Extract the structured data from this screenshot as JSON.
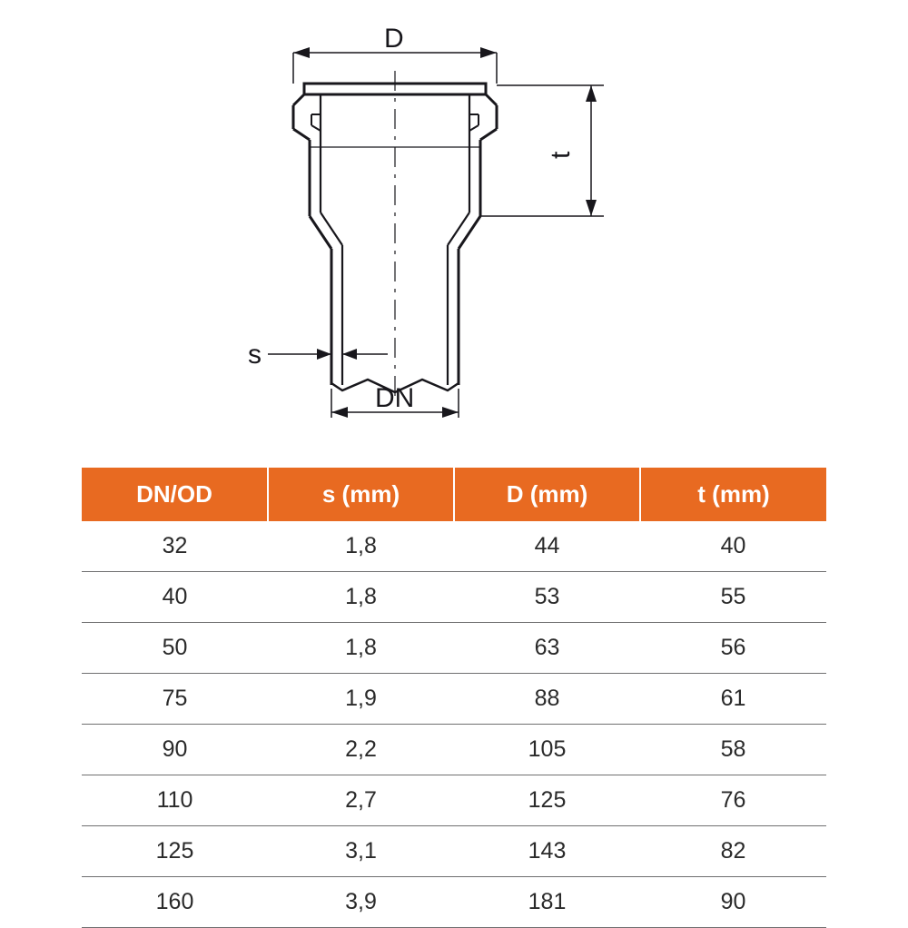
{
  "diagram": {
    "labels": {
      "d": "D",
      "t": "t",
      "s": "s",
      "dn": "DN"
    },
    "stroke_color": "#18171c",
    "stroke_width_main": 3,
    "stroke_width_dim": 1.5,
    "centerline_dash": "18 7 4 7"
  },
  "table": {
    "header_bg": "#e86a21",
    "header_fg": "#ffffff",
    "row_border_color": "#6f6f70",
    "header_fontsize": 26,
    "cell_fontsize": 25,
    "columns": [
      "DN/OD",
      "s (mm)",
      "D (mm)",
      "t (mm)"
    ],
    "rows": [
      [
        "32",
        "1,8",
        "44",
        "40"
      ],
      [
        "40",
        "1,8",
        "53",
        "55"
      ],
      [
        "50",
        "1,8",
        "63",
        "56"
      ],
      [
        "75",
        "1,9",
        "88",
        "61"
      ],
      [
        "90",
        "2,2",
        "105",
        "58"
      ],
      [
        "110",
        "2,7",
        "125",
        "76"
      ],
      [
        "125",
        "3,1",
        "143",
        "82"
      ],
      [
        "160",
        "3,9",
        "181",
        "90"
      ]
    ]
  }
}
